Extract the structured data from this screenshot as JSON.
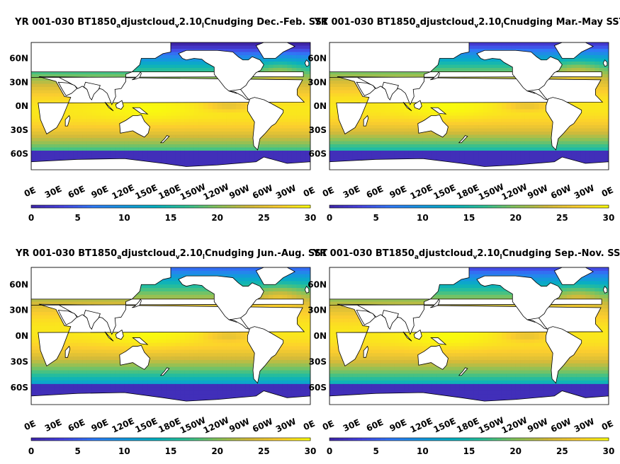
{
  "chart_data": [
    {
      "type": "heatmap",
      "title_parts": [
        "YR 001-030 BT1850",
        "a",
        "djustcloud",
        "v",
        "2.10",
        "l",
        "Cnudging Dec.-Feb. SST"
      ],
      "season": "Dec.-Feb.",
      "xticks": [
        "0E",
        "30E",
        "60E",
        "90E",
        "120E",
        "150E",
        "180E",
        "150W",
        "120W",
        "90W",
        "60W",
        "30W",
        "0E"
      ],
      "yticks": [
        "60N",
        "30N",
        "0N",
        "30S",
        "60S"
      ],
      "colorbar_ticks": [
        "0",
        "5",
        "10",
        "15",
        "20",
        "25",
        "30"
      ],
      "clim": [
        0,
        30
      ]
    },
    {
      "type": "heatmap",
      "title_parts": [
        "YR 001-030 BT1850",
        "a",
        "djustcloud",
        "v",
        "2.10",
        "l",
        "Cnudging Mar.-May SST"
      ],
      "season": "Mar.-May",
      "xticks": [
        "0E",
        "30E",
        "60E",
        "90E",
        "120E",
        "150E",
        "180E",
        "150W",
        "120W",
        "90W",
        "60W",
        "30W",
        "0E"
      ],
      "yticks": [
        "60N",
        "30N",
        "0N",
        "30S",
        "60S"
      ],
      "colorbar_ticks": [
        "0",
        "5",
        "10",
        "15",
        "20",
        "25",
        "30"
      ],
      "clim": [
        0,
        30
      ]
    },
    {
      "type": "heatmap",
      "title_parts": [
        "YR 001-030 BT1850",
        "a",
        "djustcloud",
        "v",
        "2.10",
        "l",
        "Cnudging Jun.-Aug. SST"
      ],
      "season": "Jun.-Aug.",
      "xticks": [
        "0E",
        "30E",
        "60E",
        "90E",
        "120E",
        "150E",
        "180E",
        "150W",
        "120W",
        "90W",
        "60W",
        "30W",
        "0E"
      ],
      "yticks": [
        "60N",
        "30N",
        "0N",
        "30S",
        "60S"
      ],
      "colorbar_ticks": [
        "0",
        "5",
        "10",
        "15",
        "20",
        "25",
        "30"
      ],
      "clim": [
        0,
        30
      ]
    },
    {
      "type": "heatmap",
      "title_parts": [
        "YR 001-030 BT1850",
        "a",
        "djustcloud",
        "v",
        "2.10",
        "l",
        "Cnudging Sep.-Nov. SST"
      ],
      "season": "Sep.-Nov.",
      "xticks": [
        "0E",
        "30E",
        "60E",
        "90E",
        "120E",
        "150E",
        "180E",
        "150W",
        "120W",
        "90W",
        "60W",
        "30W",
        "0E"
      ],
      "yticks": [
        "60N",
        "30N",
        "0N",
        "30S",
        "60S"
      ],
      "colorbar_ticks": [
        "0",
        "5",
        "10",
        "15",
        "20",
        "25",
        "30"
      ],
      "clim": [
        0,
        30
      ]
    }
  ],
  "colormap": [
    "#3e26a8",
    "#4743e1",
    "#2f79f7",
    "#1597dd",
    "#07b0c0",
    "#2fc093",
    "#85c25a",
    "#d2ba3a",
    "#fcce2e",
    "#f9fb0e"
  ],
  "land_color": "#ffffff"
}
